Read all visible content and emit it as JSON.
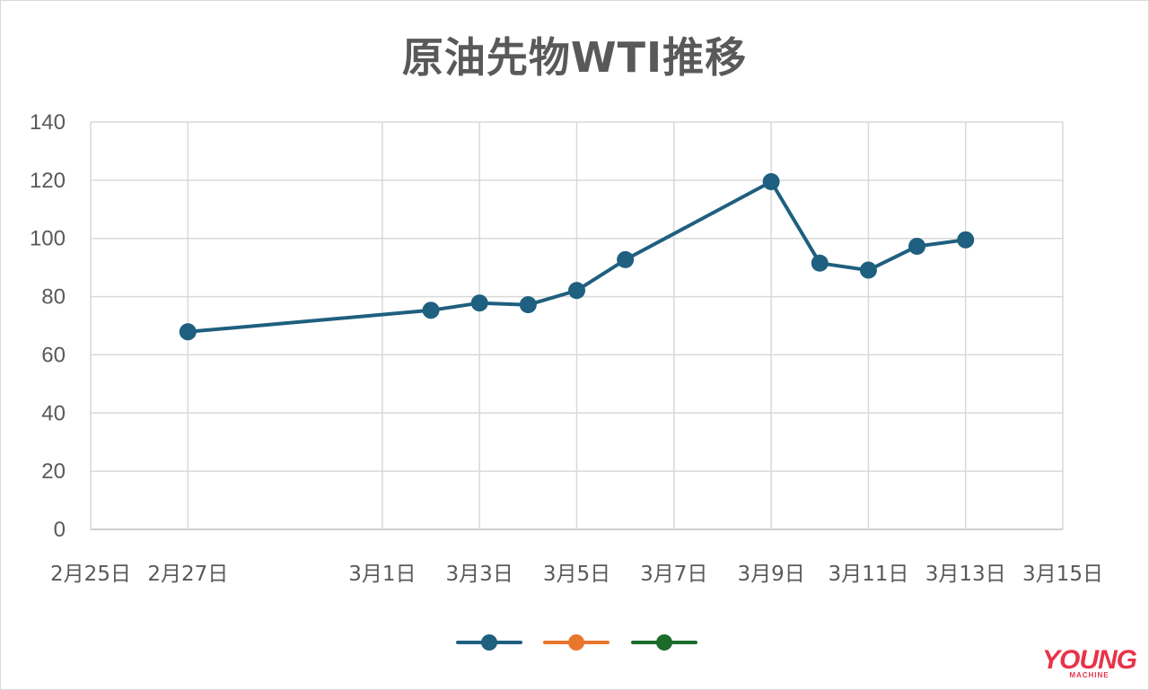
{
  "chart_data": {
    "type": "line",
    "title": "原油先物WTI推移",
    "xlabel": "",
    "ylabel": "",
    "ylim": [
      0,
      140
    ],
    "y_ticks": [
      0,
      20,
      40,
      60,
      80,
      100,
      120,
      140
    ],
    "x_tick_dates": [
      "2/25",
      "2/27",
      "3/1",
      "3/3",
      "3/5",
      "3/7",
      "3/9",
      "3/11",
      "3/13",
      "3/15"
    ],
    "x_tick_labels": [
      "2月25日",
      "2月27日",
      "3月1日",
      "3月3日",
      "3月5日",
      "3月7日",
      "3月9日",
      "3月11日",
      "3月13日",
      "3月15日"
    ],
    "xlim": [
      "2/25",
      "3/15"
    ],
    "grid": true,
    "legend_position": "bottom",
    "series": [
      {
        "name": "",
        "color": "#1f5f7f",
        "points": [
          {
            "x": "2/27",
            "y": 67.9
          },
          {
            "x": "3/2",
            "y": 75.3
          },
          {
            "x": "3/3",
            "y": 77.8
          },
          {
            "x": "3/4",
            "y": 77.2
          },
          {
            "x": "3/5",
            "y": 82.1
          },
          {
            "x": "3/6",
            "y": 92.7
          },
          {
            "x": "3/9",
            "y": 119.5
          },
          {
            "x": "3/10",
            "y": 91.5
          },
          {
            "x": "3/11",
            "y": 89.1
          },
          {
            "x": "3/12",
            "y": 97.3
          },
          {
            "x": "3/13",
            "y": 99.5
          }
        ]
      },
      {
        "name": "",
        "color": "#e8762d",
        "points": []
      },
      {
        "name": "",
        "color": "#1b6b2a",
        "points": []
      }
    ]
  },
  "watermark": {
    "main": "YOUNG",
    "sub": "MACHINE"
  }
}
